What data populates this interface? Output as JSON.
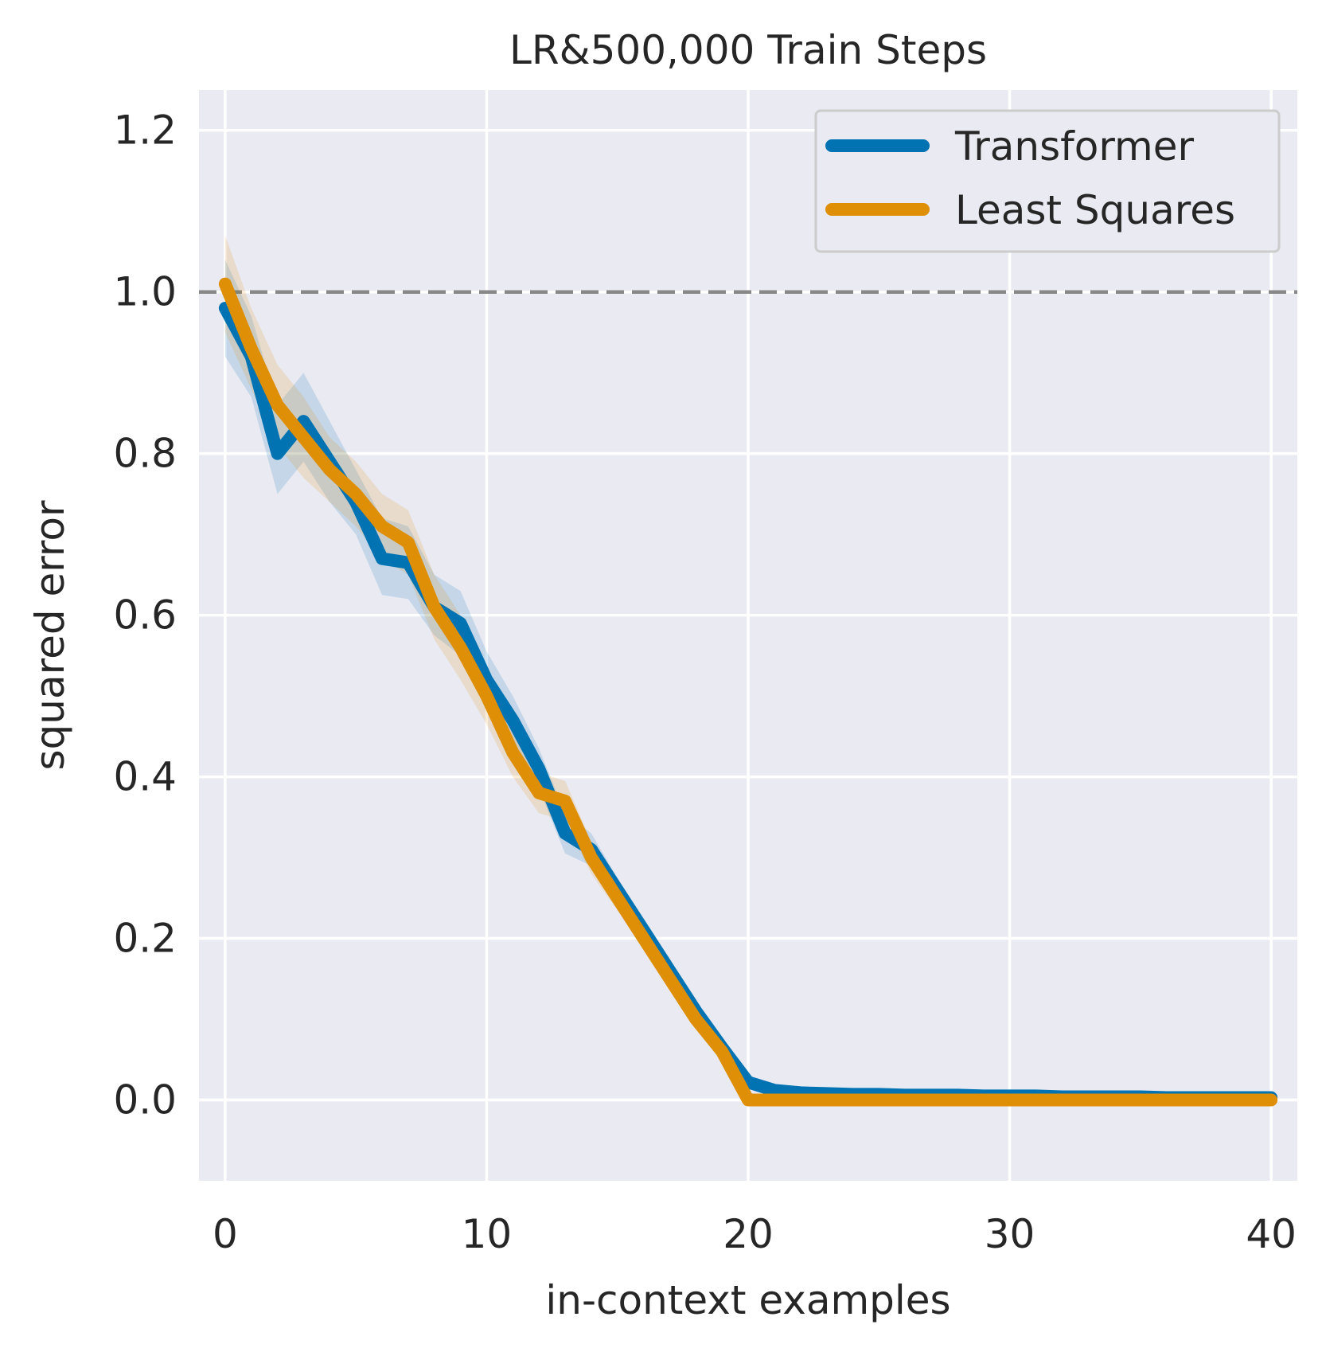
{
  "chart_data": {
    "type": "line",
    "title": "LR&500,000 Train Steps",
    "xlabel": "in-context examples",
    "ylabel": "squared error",
    "xlim": [
      -1,
      41
    ],
    "ylim": [
      -0.1,
      1.25
    ],
    "xticks": [
      0,
      10,
      20,
      30,
      40
    ],
    "yticks": [
      0.0,
      0.2,
      0.4,
      0.6,
      0.8,
      1.0,
      1.2
    ],
    "xtick_labels": [
      "0",
      "10",
      "20",
      "30",
      "40"
    ],
    "ytick_labels": [
      "0.0",
      "0.2",
      "0.4",
      "0.6",
      "0.8",
      "1.0",
      "1.2"
    ],
    "grid": true,
    "legend_position": "top-right",
    "baseline": {
      "y": 1.0,
      "style": "dashed",
      "color": "#888888"
    },
    "x": [
      0,
      1,
      2,
      3,
      4,
      5,
      6,
      7,
      8,
      9,
      10,
      11,
      12,
      13,
      14,
      15,
      16,
      17,
      18,
      19,
      20,
      21,
      22,
      23,
      24,
      25,
      26,
      27,
      28,
      29,
      30,
      31,
      32,
      33,
      34,
      35,
      36,
      37,
      38,
      39,
      40
    ],
    "series": [
      {
        "name": "Transformer",
        "color": "#0173b2",
        "values": [
          0.98,
          0.92,
          0.8,
          0.84,
          0.79,
          0.74,
          0.67,
          0.665,
          0.61,
          0.59,
          0.52,
          0.47,
          0.41,
          0.33,
          0.31,
          0.26,
          0.21,
          0.16,
          0.11,
          0.065,
          0.022,
          0.012,
          0.009,
          0.008,
          0.007,
          0.007,
          0.006,
          0.006,
          0.006,
          0.005,
          0.005,
          0.005,
          0.004,
          0.004,
          0.004,
          0.004,
          0.003,
          0.003,
          0.003,
          0.003,
          0.003
        ],
        "lower": [
          0.92,
          0.87,
          0.75,
          0.79,
          0.74,
          0.7,
          0.625,
          0.62,
          0.575,
          0.55,
          0.49,
          0.44,
          0.385,
          0.305,
          0.29,
          0.245,
          0.195,
          0.145,
          0.1,
          0.058,
          0.018,
          0.009,
          0.007,
          0.006,
          0.005,
          0.005,
          0.004,
          0.004,
          0.004,
          0.003,
          0.003,
          0.003,
          0.002,
          0.002,
          0.002,
          0.002,
          0.002,
          0.002,
          0.002,
          0.002,
          0.002
        ],
        "upper": [
          1.04,
          0.97,
          0.86,
          0.9,
          0.84,
          0.78,
          0.72,
          0.71,
          0.65,
          0.63,
          0.555,
          0.5,
          0.435,
          0.355,
          0.33,
          0.275,
          0.225,
          0.175,
          0.12,
          0.072,
          0.026,
          0.015,
          0.011,
          0.01,
          0.009,
          0.009,
          0.008,
          0.008,
          0.008,
          0.007,
          0.007,
          0.007,
          0.006,
          0.006,
          0.006,
          0.006,
          0.004,
          0.004,
          0.004,
          0.004,
          0.004
        ]
      },
      {
        "name": "Least Squares",
        "color": "#de8f05",
        "values": [
          1.01,
          0.93,
          0.86,
          0.82,
          0.78,
          0.75,
          0.71,
          0.69,
          0.61,
          0.56,
          0.5,
          0.43,
          0.38,
          0.37,
          0.3,
          0.25,
          0.2,
          0.15,
          0.1,
          0.06,
          0.0,
          0.0,
          0.0,
          0.0,
          0.0,
          0.0,
          0.0,
          0.0,
          0.0,
          0.0,
          0.0,
          0.0,
          0.0,
          0.0,
          0.0,
          0.0,
          0.0,
          0.0,
          0.0,
          0.0,
          0.0
        ],
        "lower": [
          0.95,
          0.88,
          0.81,
          0.77,
          0.74,
          0.71,
          0.67,
          0.65,
          0.57,
          0.52,
          0.465,
          0.4,
          0.355,
          0.345,
          0.28,
          0.235,
          0.19,
          0.14,
          0.095,
          0.055,
          0.0,
          0.0,
          0.0,
          0.0,
          0.0,
          0.0,
          0.0,
          0.0,
          0.0,
          0.0,
          0.0,
          0.0,
          0.0,
          0.0,
          0.0,
          0.0,
          0.0,
          0.0,
          0.0,
          0.0,
          0.0
        ],
        "upper": [
          1.07,
          0.98,
          0.91,
          0.87,
          0.82,
          0.79,
          0.75,
          0.73,
          0.65,
          0.6,
          0.535,
          0.46,
          0.405,
          0.395,
          0.32,
          0.265,
          0.21,
          0.16,
          0.105,
          0.065,
          0.0,
          0.0,
          0.0,
          0.0,
          0.0,
          0.0,
          0.0,
          0.0,
          0.0,
          0.0,
          0.0,
          0.0,
          0.0,
          0.0,
          0.0,
          0.0,
          0.0,
          0.0,
          0.0,
          0.0,
          0.0
        ]
      }
    ]
  }
}
